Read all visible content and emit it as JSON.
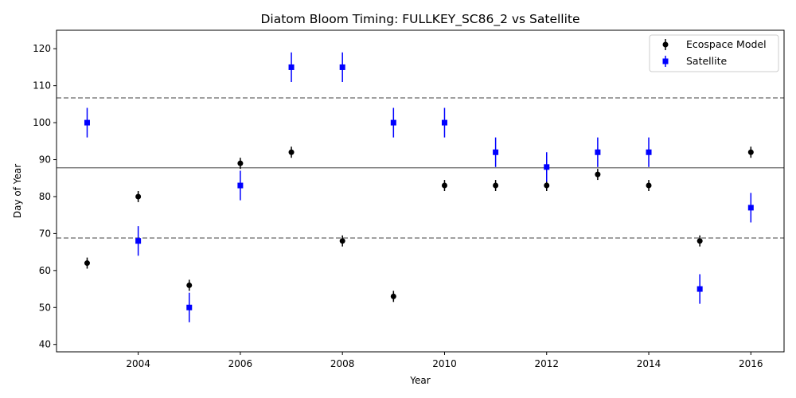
{
  "chart_data": {
    "type": "scatter",
    "title": "Diatom Bloom Timing: FULLKEY_SC86_2 vs Satellite",
    "xlabel": "Year",
    "ylabel": "Day of Year",
    "xlim": [
      2002.4,
      2016.65
    ],
    "ylim": [
      38,
      125
    ],
    "x_ticks": [
      2004,
      2006,
      2008,
      2010,
      2012,
      2014,
      2016
    ],
    "y_ticks": [
      40,
      50,
      60,
      70,
      80,
      90,
      100,
      110,
      120
    ],
    "grid": false,
    "legend_position": "top-right",
    "reference_lines": {
      "mean": 87.8,
      "lower": 68.8,
      "upper": 106.7,
      "color": "#808080"
    },
    "series": [
      {
        "name": "Ecospace Model",
        "marker": "circle",
        "color": "#000000",
        "x": [
          2003,
          2004,
          2005,
          2006,
          2007,
          2008,
          2009,
          2010,
          2011,
          2012,
          2013,
          2014,
          2015,
          2016
        ],
        "y": [
          62,
          80,
          56,
          89,
          92,
          68,
          53,
          83,
          83,
          83,
          86,
          83,
          68,
          92
        ],
        "err": 1.5
      },
      {
        "name": "Satellite",
        "marker": "square",
        "color": "#0000ff",
        "x": [
          2003,
          2004,
          2005,
          2006,
          2007,
          2008,
          2009,
          2010,
          2011,
          2012,
          2013,
          2014,
          2015,
          2016
        ],
        "y": [
          100,
          68,
          50,
          83,
          115,
          115,
          100,
          100,
          92,
          88,
          92,
          92,
          55,
          77
        ],
        "err": 4
      }
    ]
  }
}
